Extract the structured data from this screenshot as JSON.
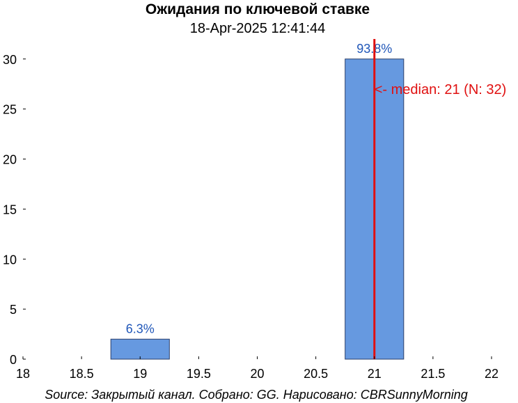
{
  "chart_data": {
    "type": "bar",
    "title": "Ожидания по ключевой ставке",
    "subtitle": "18-Apr-2025 12:41:44",
    "x": [
      19,
      21
    ],
    "values": [
      2,
      30
    ],
    "bar_labels": [
      "6.3%",
      "93.8%"
    ],
    "bar_width": 0.5,
    "xlim": [
      18,
      22
    ],
    "ylim": [
      0,
      32
    ],
    "xticks": [
      18,
      18.5,
      19,
      19.5,
      20,
      20.5,
      21,
      21.5,
      22
    ],
    "xtick_labels": [
      "18",
      "18.5",
      "19",
      "19.5",
      "20",
      "20.5",
      "21",
      "21.5",
      "22"
    ],
    "yticks": [
      0,
      5,
      10,
      15,
      20,
      25,
      30
    ],
    "ytick_labels": [
      "0",
      "5",
      "10",
      "15",
      "20",
      "25",
      "30"
    ],
    "median": {
      "value": 21,
      "label": "<- median: 21 (N: 32)",
      "label_y": 27,
      "color": "#e01010"
    },
    "bar_color": "#6699e0",
    "grid": false,
    "source": "Source: Закрытый канал. Собрано: GG. Нарисовано: CBRSunnyMorning"
  }
}
